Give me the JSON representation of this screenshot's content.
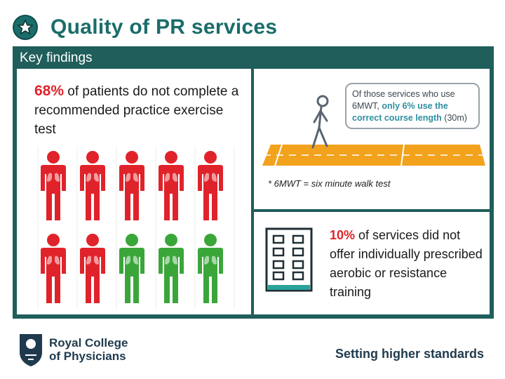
{
  "header": {
    "title": "Quality of PR services",
    "icon": "star-icon",
    "accent_color": "#1a6d6a"
  },
  "panel": {
    "heading": "Key findings",
    "background": "#1f5e5b"
  },
  "finding_left": {
    "percent": "68%",
    "text": " of patients do not complete a recommended practice exercise test",
    "figures": {
      "total": 10,
      "red_count": 7,
      "green_count": 3,
      "red_color": "#e0232a",
      "green_color": "#3aa63a"
    }
  },
  "finding_right_top": {
    "bubble_prefix": "Of those services who use 6MWT, ",
    "bubble_highlight": "only 6% use the correct course length",
    "bubble_suffix": " (30m)",
    "footnote": "* 6MWT = six minute walk test",
    "track_color": "#f2a21c"
  },
  "finding_right_bottom": {
    "percent": "10%",
    "text": " of services did not offer individually prescribed aerobic or resistance training",
    "icon": "building-icon"
  },
  "footer": {
    "org_line1": "Royal College",
    "org_line2": "of Physicians",
    "tagline": "Setting higher standards",
    "logo": "rcp-crest-icon"
  }
}
